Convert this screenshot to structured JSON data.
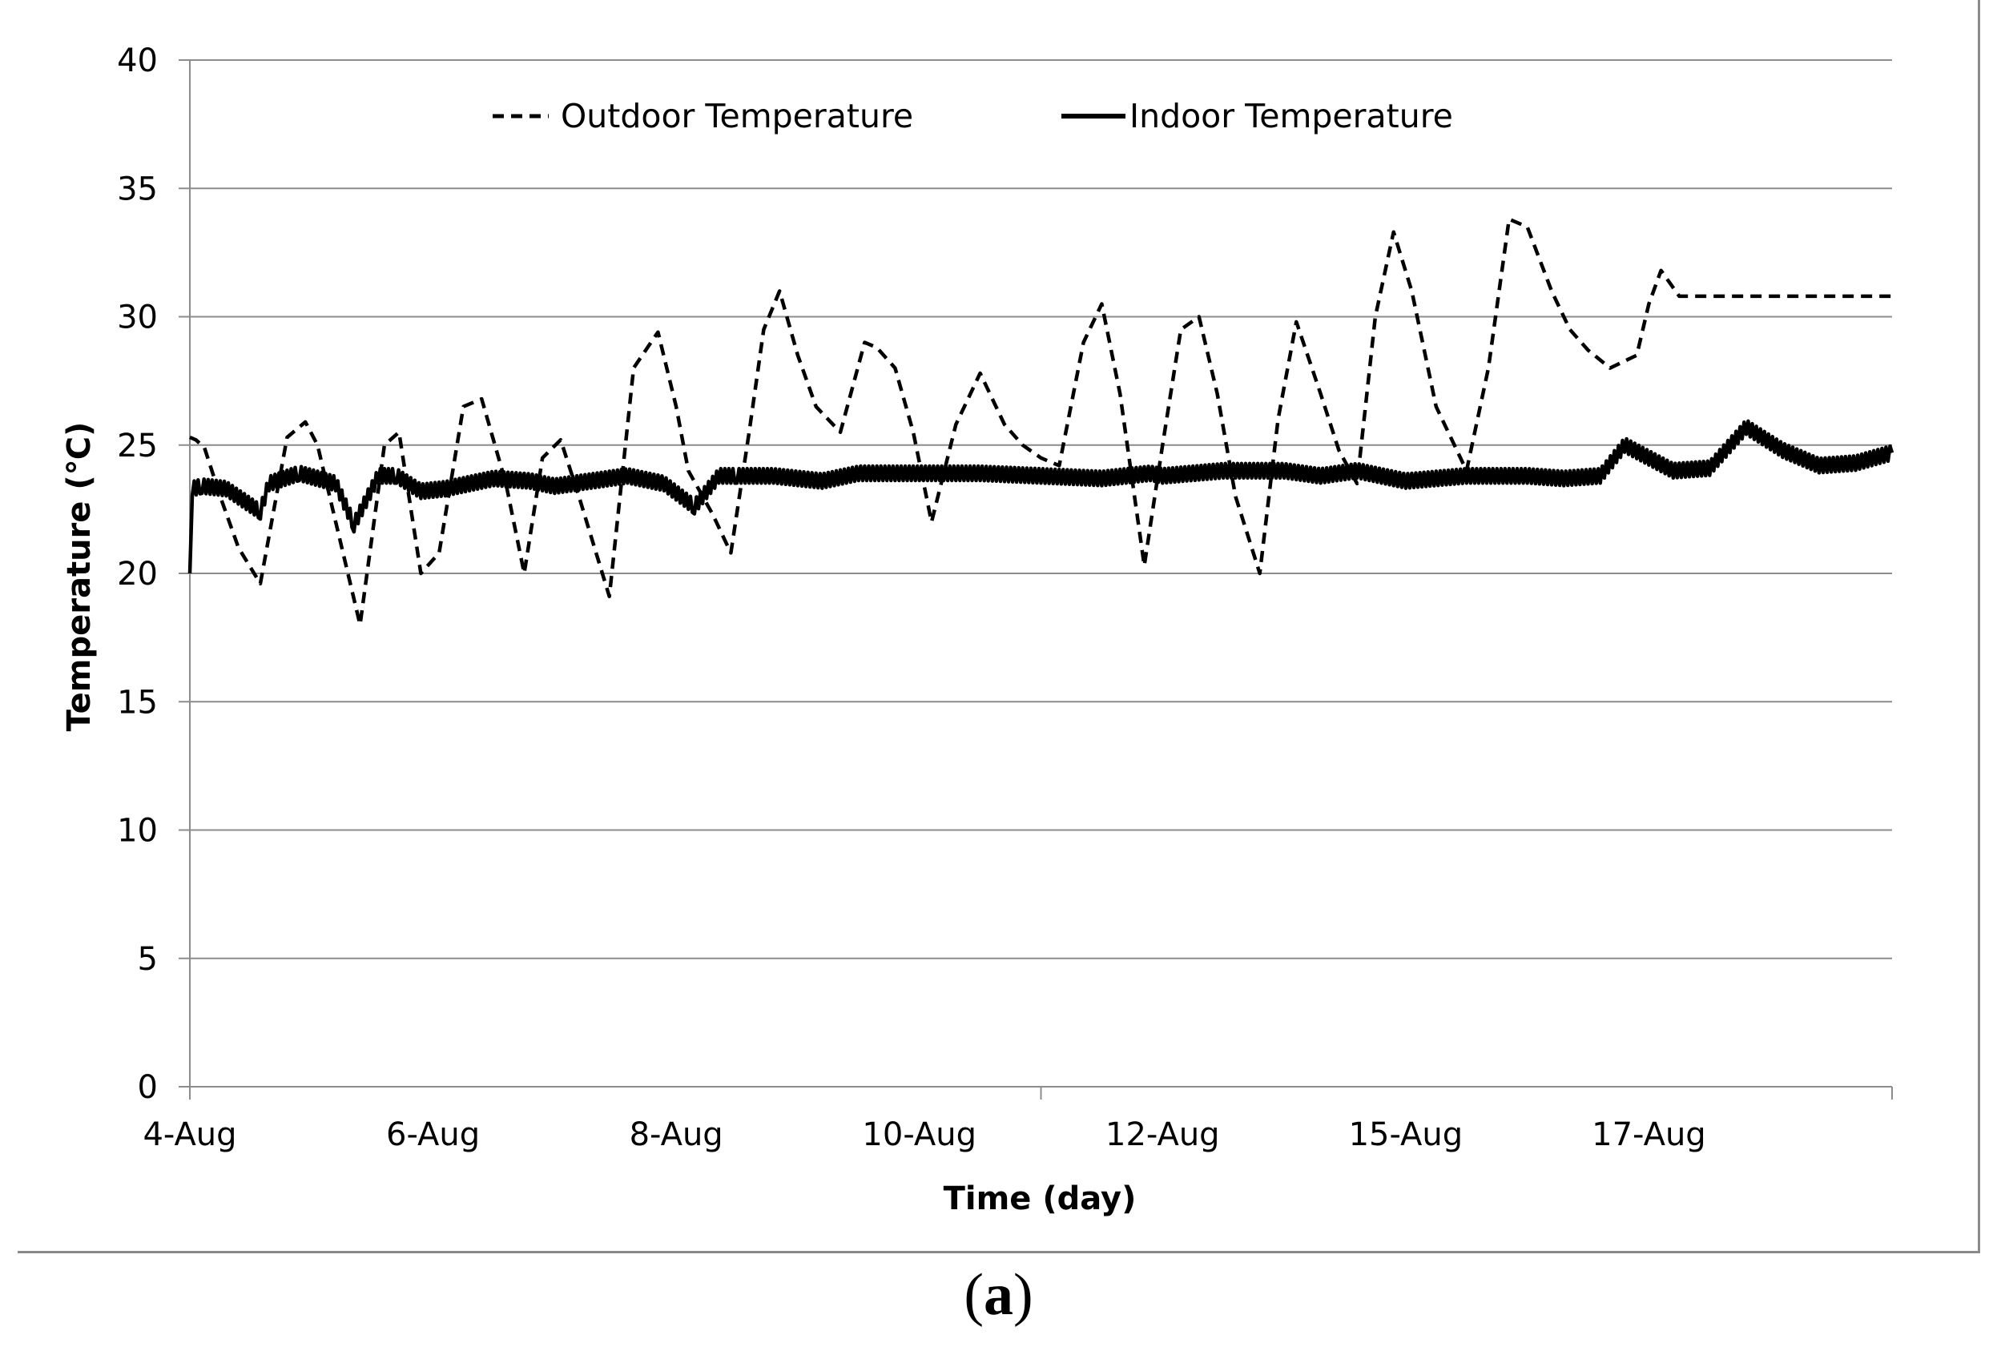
{
  "chart_data": {
    "type": "line",
    "title": "",
    "xlabel": "Time (day)",
    "ylabel": "Temperature (℃)",
    "ylim": [
      0,
      40
    ],
    "yticks": [
      0,
      5,
      10,
      15,
      20,
      25,
      30,
      35,
      40
    ],
    "xlim": [
      0,
      14
    ],
    "xtick_labels": [
      {
        "x": 0,
        "label": "4-Aug"
      },
      {
        "x": 2,
        "label": "6-Aug"
      },
      {
        "x": 4,
        "label": "8-Aug"
      },
      {
        "x": 6,
        "label": "10-Aug"
      },
      {
        "x": 8,
        "label": "12-Aug"
      },
      {
        "x": 10,
        "label": "15-Aug"
      },
      {
        "x": 12,
        "label": "17-Aug"
      }
    ],
    "grid": "horizontal",
    "legend_position": "top",
    "series": [
      {
        "name": "Outdoor Temperature",
        "style": "dashed",
        "color": "#000000",
        "x": [
          0,
          0.05,
          0.12,
          0.25,
          0.4,
          0.58,
          0.8,
          0.95,
          1.05,
          1.2,
          1.4,
          1.6,
          1.72,
          1.9,
          2.05,
          2.25,
          2.4,
          2.6,
          2.75,
          2.9,
          3.05,
          3.2,
          3.45,
          3.65,
          3.85,
          4.0,
          4.1,
          4.3,
          4.45,
          4.6,
          4.72,
          4.85,
          5.0,
          5.15,
          5.35,
          5.55,
          5.65,
          5.8,
          5.95,
          6.1,
          6.3,
          6.5,
          6.7,
          6.85,
          7.0,
          7.15,
          7.35,
          7.5,
          7.65,
          7.85,
          8.0,
          8.15,
          8.3,
          8.45,
          8.6,
          8.8,
          8.95,
          9.1,
          9.3,
          9.45,
          9.6,
          9.75,
          9.9,
          10.05,
          10.25,
          10.5,
          10.68,
          10.85,
          11.0,
          11.2,
          11.35,
          11.5,
          11.68,
          11.9,
          12.0,
          12.1,
          12.25,
          12.35,
          12.5,
          12.7,
          12.9,
          13.05,
          13.2,
          13.35,
          13.5,
          13.68,
          13.85,
          13.95,
          14.0
        ],
        "y": [
          25.3,
          25.2,
          24.9,
          23.0,
          21.0,
          19.6,
          25.3,
          25.9,
          25.0,
          22.0,
          18.0,
          25.0,
          25.5,
          20.0,
          20.8,
          26.5,
          26.8,
          23.5,
          20.0,
          24.5,
          25.2,
          23.0,
          19.1,
          28.0,
          29.4,
          26.5,
          24.0,
          22.3,
          20.8,
          25.5,
          29.5,
          31.0,
          28.5,
          26.5,
          25.5,
          29.0,
          28.8,
          28.0,
          25.5,
          22.0,
          25.8,
          27.8,
          25.8,
          25.0,
          24.5,
          24.2,
          29.0,
          30.5,
          27.0,
          20.3,
          25.0,
          29.5,
          30.0,
          27.0,
          23.0,
          20.0,
          26.0,
          29.8,
          27.0,
          24.8,
          23.5,
          30.0,
          33.3,
          31.0,
          26.5,
          24.0,
          28.0,
          33.8,
          33.5,
          31.0,
          29.5,
          28.7,
          28.0,
          28.5,
          30.5,
          31.8,
          30.8,
          30.8,
          30.8,
          30.8,
          30.8,
          30.8,
          30.8,
          30.8,
          30.8,
          30.8,
          30.8,
          30.8,
          30.8
        ]
      },
      {
        "name": "Indoor Temperature",
        "style": "solid",
        "color": "#000000",
        "x": [
          0,
          0.02,
          0.1,
          0.3,
          0.58,
          0.65,
          0.9,
          1.2,
          1.35,
          1.55,
          1.7,
          1.9,
          2.1,
          2.3,
          2.5,
          2.8,
          3.0,
          3.3,
          3.6,
          3.9,
          4.15,
          4.35,
          4.5,
          4.8,
          5.2,
          5.5,
          6.0,
          6.5,
          7.0,
          7.5,
          7.9,
          8.0,
          8.5,
          9.0,
          9.3,
          9.6,
          10.0,
          10.5,
          11.0,
          11.3,
          11.6,
          11.8,
          12.2,
          12.5,
          12.8,
          13.1,
          13.4,
          13.7,
          14.0
        ],
        "y": [
          20.0,
          23.3,
          23.4,
          23.3,
          22.4,
          23.5,
          23.9,
          23.5,
          21.9,
          23.8,
          23.8,
          23.2,
          23.3,
          23.5,
          23.7,
          23.6,
          23.4,
          23.6,
          23.8,
          23.5,
          22.6,
          23.8,
          23.8,
          23.8,
          23.6,
          23.9,
          23.9,
          23.9,
          23.8,
          23.7,
          23.9,
          23.8,
          24.0,
          24.0,
          23.8,
          24.0,
          23.6,
          23.8,
          23.8,
          23.7,
          23.8,
          25.0,
          24.0,
          24.1,
          25.7,
          24.8,
          24.2,
          24.3,
          24.7
        ]
      }
    ]
  },
  "panel_label": "(a)",
  "panel_label_open": "(",
  "panel_label_letter": "a",
  "panel_label_close": ")"
}
